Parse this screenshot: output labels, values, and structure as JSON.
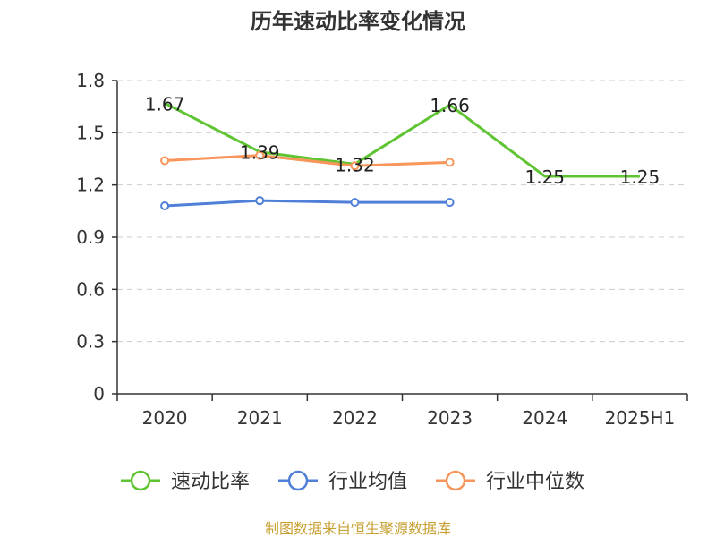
{
  "chart_data": {
    "type": "line",
    "title": "历年速动比率变化情况",
    "categories": [
      "2020",
      "2021",
      "2022",
      "2023",
      "2024",
      "2025H1"
    ],
    "yticks": [
      "0",
      "0.3",
      "0.6",
      "0.9",
      "1.2",
      "1.5",
      "1.8"
    ],
    "ylim": [
      0,
      1.8
    ],
    "grid": true,
    "legend_position": "bottom",
    "series": [
      {
        "name": "速动比率",
        "color": "#5fc431",
        "values": [
          1.67,
          1.39,
          1.32,
          1.66,
          1.25,
          1.25
        ],
        "labels": [
          "1.67",
          "1.39",
          "1.32",
          "1.66",
          "1.25",
          "1.25"
        ],
        "markers": false
      },
      {
        "name": "行业均值",
        "color": "#4f7fd8",
        "values": [
          1.08,
          1.11,
          1.1,
          1.1,
          null,
          null
        ],
        "markers": true
      },
      {
        "name": "行业中位数",
        "color": "#f7955a",
        "values": [
          1.34,
          1.37,
          1.31,
          1.33,
          null,
          null
        ],
        "markers": true
      }
    ],
    "source": "制图数据来自恒生聚源数据库"
  }
}
